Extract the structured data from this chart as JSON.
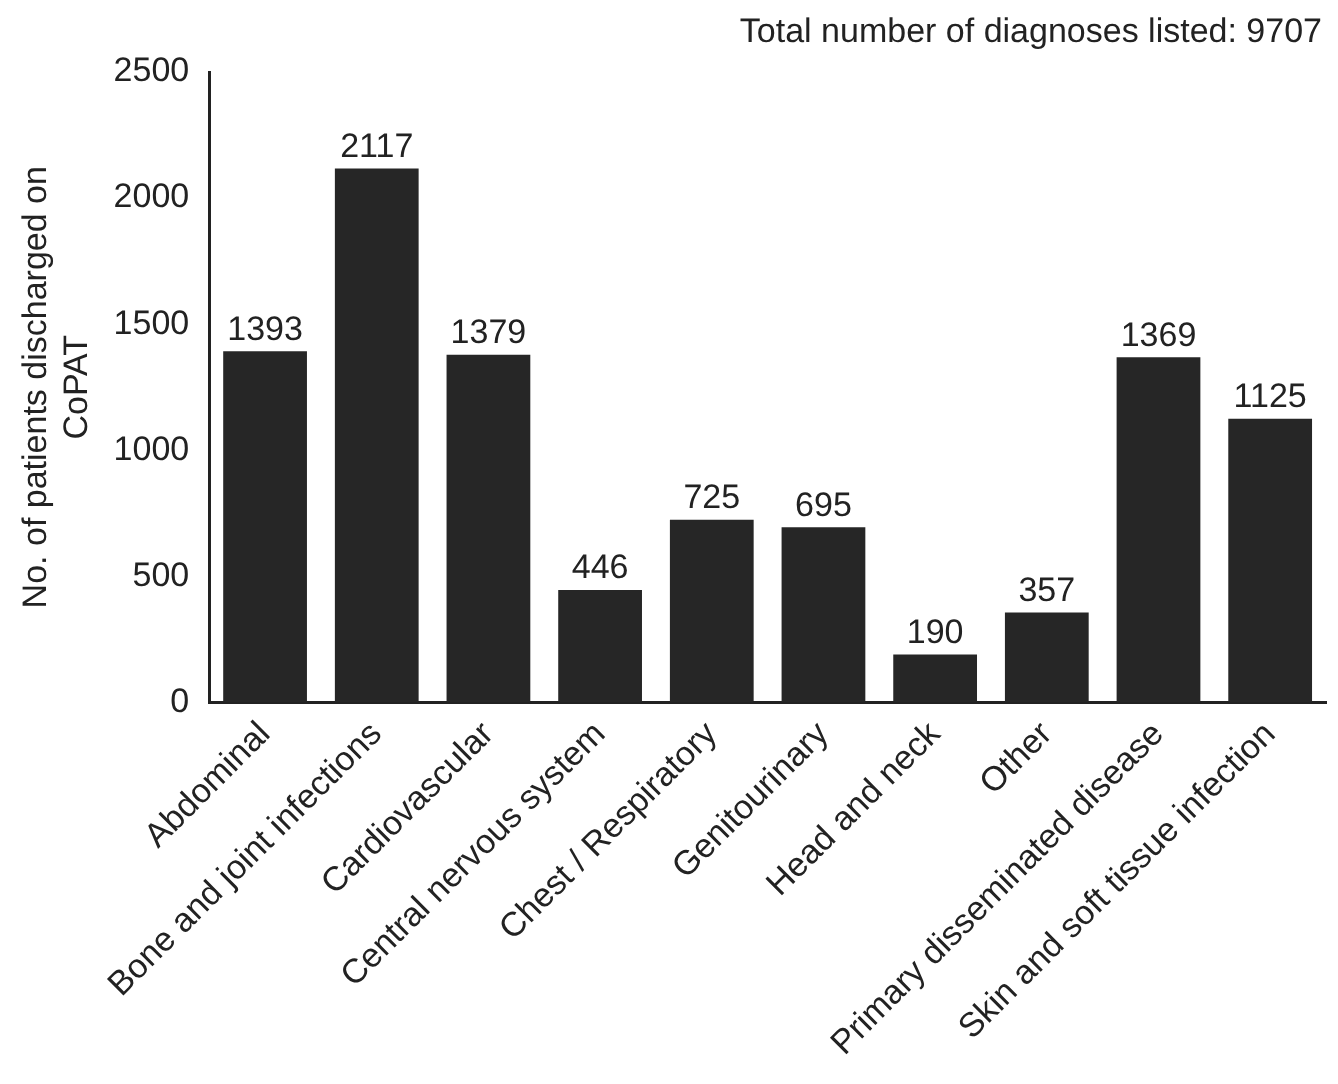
{
  "chart_data": {
    "type": "bar",
    "ylabel": "No. of patients discharged on CoPAT",
    "categories": [
      "Abdominal",
      "Bone and joint infections",
      "Cardiovascular",
      "Central nervous system",
      "Chest / Respiratory",
      "Genitourinary",
      "Head and neck",
      "Other",
      "Primary disseminated disease",
      "Skin and soft tissue infection"
    ],
    "values": [
      1393,
      2117,
      1379,
      446,
      725,
      695,
      190,
      357,
      1369,
      1125
    ],
    "color": "#262626",
    "ylim": [
      0,
      2500
    ],
    "yticks": [
      0,
      500,
      1000,
      1500,
      2000,
      2500
    ],
    "grid": false,
    "legend": false,
    "data_labels": true,
    "annotations": [
      "Total number of diagnoses listed: 9707"
    ]
  }
}
